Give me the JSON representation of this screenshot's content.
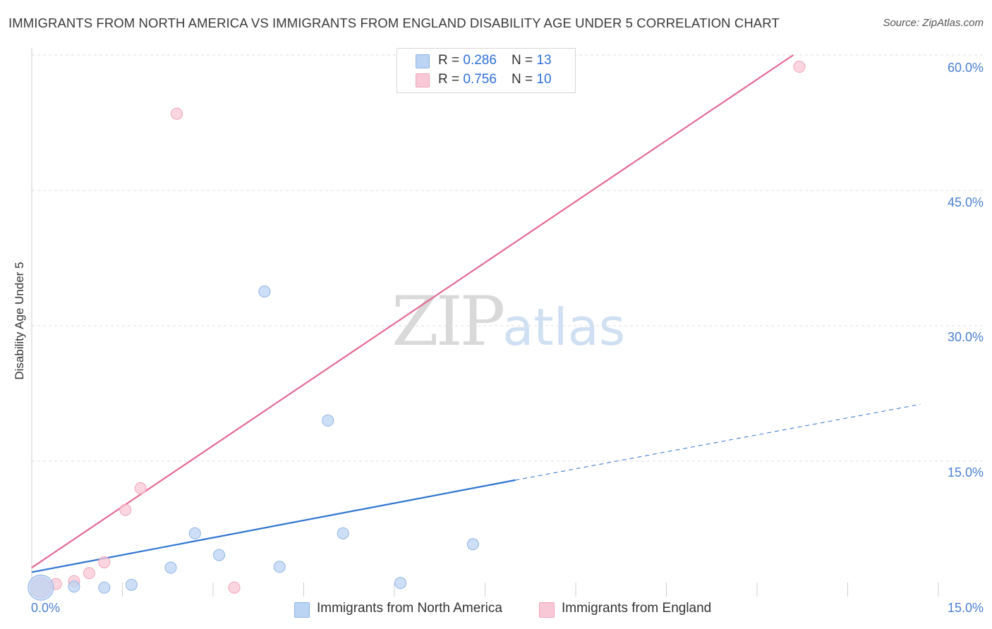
{
  "title": "IMMIGRANTS FROM NORTH AMERICA VS IMMIGRANTS FROM ENGLAND DISABILITY AGE UNDER 5 CORRELATION CHART",
  "source": "Source: ZipAtlas.com",
  "watermark": {
    "zip": "ZIP",
    "atlas": "atlas"
  },
  "colors": {
    "blue_fill": "#bcd4f3",
    "blue_stroke": "#8fb4e6",
    "blue_line": "#2f74d0",
    "pink_fill": "#f9c8d6",
    "pink_stroke": "#f0a3ba",
    "pink_line": "#e46a90",
    "grid": "#dcdcdc",
    "tick_text": "#4a7fd0"
  },
  "legend": {
    "north_america": {
      "r_label": "R = ",
      "r_value": "0.286",
      "n_label": "N = ",
      "n_value": "13"
    },
    "england": {
      "r_label": "R = ",
      "r_value": "0.756",
      "n_label": "N = ",
      "n_value": "10"
    }
  },
  "chart_data": {
    "type": "scatter",
    "title": "IMMIGRANTS FROM NORTH AMERICA VS IMMIGRANTS FROM ENGLAND DISABILITY AGE UNDER 5 CORRELATION CHART",
    "xlabel": "",
    "ylabel": "Disability Age Under 5",
    "xlim": [
      0,
      15
    ],
    "ylim": [
      0,
      60
    ],
    "x_tick_labels": [
      "0.0%",
      "15.0%"
    ],
    "y_ticks": [
      15,
      30,
      45,
      60
    ],
    "y_tick_labels": [
      "15.0%",
      "30.0%",
      "45.0%",
      "60.0%"
    ],
    "grid": true,
    "legend_position": "top-center",
    "series": [
      {
        "name": "Immigrants from North America",
        "color": "#bcd4f3",
        "points": [
          {
            "x": 0.15,
            "y": 1.0,
            "big": true
          },
          {
            "x": 0.7,
            "y": 1.1
          },
          {
            "x": 1.2,
            "y": 1.0
          },
          {
            "x": 1.65,
            "y": 1.3
          },
          {
            "x": 2.3,
            "y": 3.2
          },
          {
            "x": 2.7,
            "y": 7.0
          },
          {
            "x": 3.1,
            "y": 4.6
          },
          {
            "x": 3.85,
            "y": 33.8
          },
          {
            "x": 4.1,
            "y": 3.3
          },
          {
            "x": 4.9,
            "y": 19.5
          },
          {
            "x": 5.15,
            "y": 7.0
          },
          {
            "x": 6.1,
            "y": 1.5
          },
          {
            "x": 7.3,
            "y": 5.8
          }
        ],
        "trend": {
          "x0": 0,
          "y0": 2.7,
          "x1": 8.0,
          "y1": 12.9,
          "dashed_to_x": 14.7,
          "dashed_to_y": 21.3
        }
      },
      {
        "name": "Immigrants from England",
        "color": "#f9c8d6",
        "points": [
          {
            "x": 0.15,
            "y": 1.0,
            "big": true
          },
          {
            "x": 0.4,
            "y": 1.4
          },
          {
            "x": 0.7,
            "y": 1.7
          },
          {
            "x": 0.95,
            "y": 2.6
          },
          {
            "x": 1.2,
            "y": 3.8
          },
          {
            "x": 1.55,
            "y": 9.6
          },
          {
            "x": 1.8,
            "y": 12.0
          },
          {
            "x": 2.4,
            "y": 53.5
          },
          {
            "x": 3.35,
            "y": 1.0
          },
          {
            "x": 12.7,
            "y": 58.7
          }
        ],
        "trend": {
          "x0": 0,
          "y0": 3.2,
          "x1": 12.6,
          "y1": 60.0
        }
      }
    ]
  },
  "bottom_legend": {
    "north_america": "Immigrants from North America",
    "england": "Immigrants from England"
  }
}
